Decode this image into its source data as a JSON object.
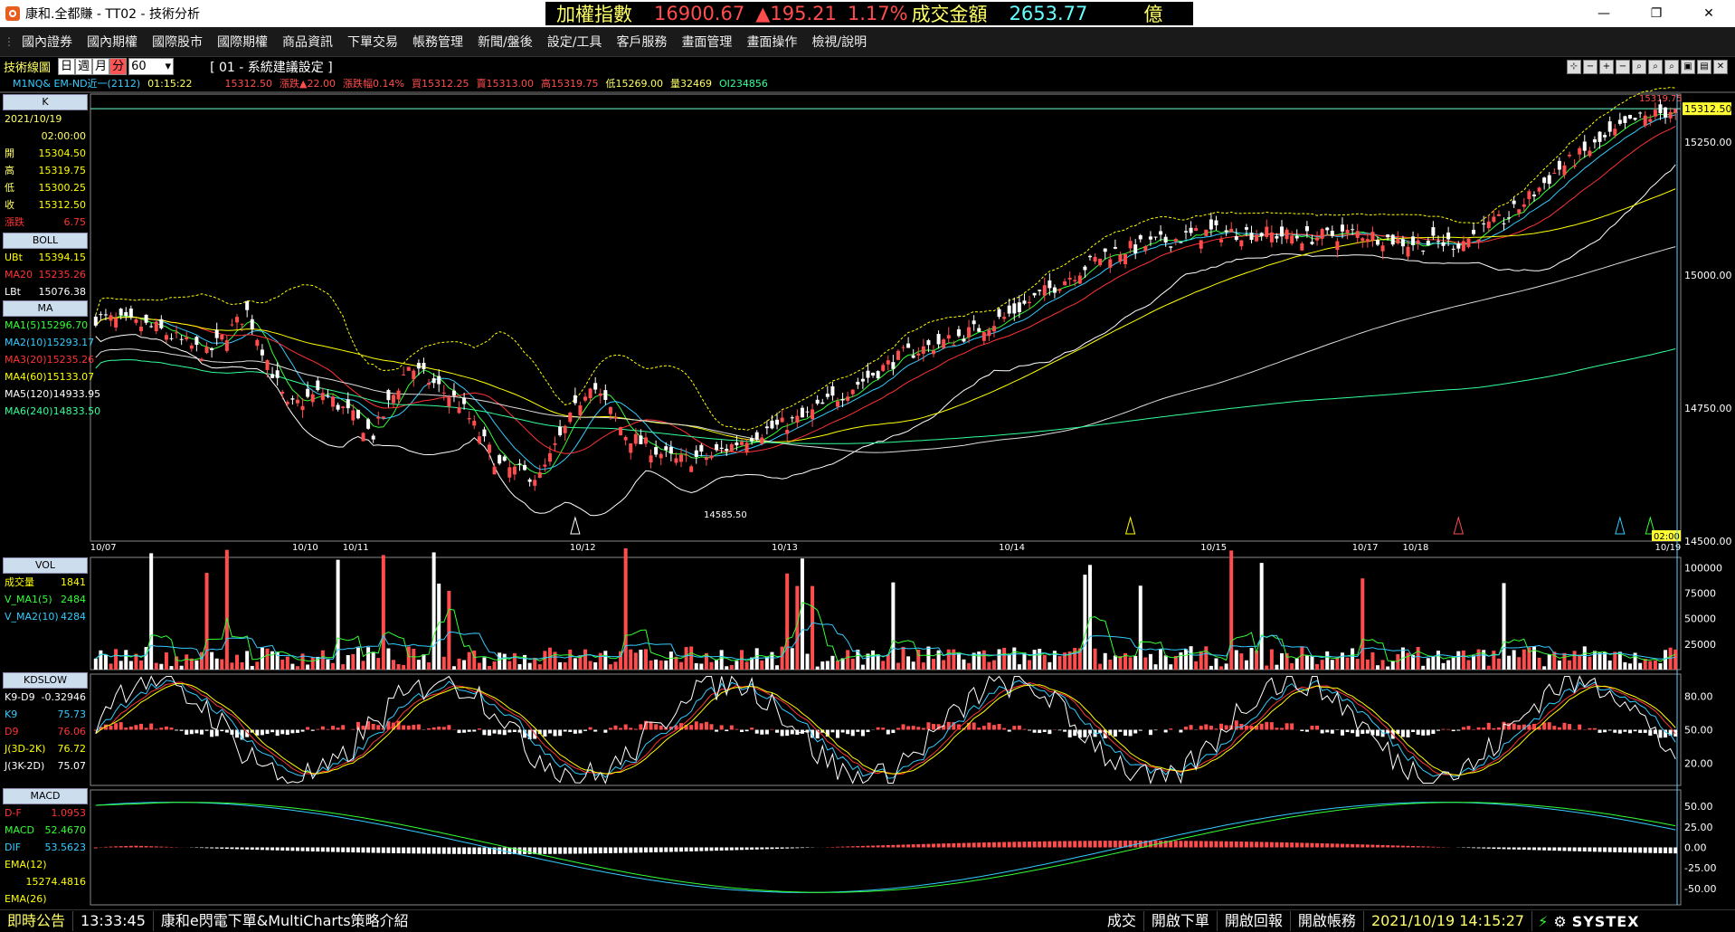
{
  "window": {
    "title": "康和.全都賺 - TT02 - 技術分析",
    "ticker_label": "加權指數",
    "ticker_value": "16900.67",
    "ticker_change": "▲195.21",
    "ticker_pct": "1.17%",
    "ticker_vol_label": "成交金額",
    "ticker_vol": "2653.77",
    "ticker_unit": "億",
    "minimize": "—",
    "maximize": "❐",
    "close": "✕"
  },
  "menu": [
    "國內證券",
    "國內期權",
    "國際股市",
    "國際期權",
    "商品資訊",
    "下單交易",
    "帳務管理",
    "新聞/盤後",
    "設定/工具",
    "客戶服務",
    "畫面管理",
    "畫面操作",
    "檢視/說明"
  ],
  "toolbar": {
    "chart_label": "技術線圖",
    "periods": [
      "日",
      "週",
      "月",
      "分"
    ],
    "active_period": "分",
    "interval": "60",
    "setting": "[ 01 - 系統建議設定 ]"
  },
  "infoline": {
    "symbol": "M1NQ&  EM-ND近一(2112)",
    "time": "01:15:22",
    "price": "15312.50",
    "change": "漲跌▲22.00",
    "pct": "漲跌幅0.14%",
    "bid": "買15312.25",
    "ask": "賣15313.00",
    "high": "高15319.75",
    "low": "低15269.00",
    "vol": "量32469",
    "oi": "OI234856"
  },
  "side_k": {
    "header": "K",
    "date": "2021/10/19",
    "time": "02:00:00",
    "rows": [
      {
        "label": "開",
        "value": "15304.50",
        "color": "#ffff00"
      },
      {
        "label": "高",
        "value": "15319.75",
        "color": "#ffff00"
      },
      {
        "label": "低",
        "value": "15300.25",
        "color": "#ffff00"
      },
      {
        "label": "收",
        "value": "15312.50",
        "color": "#ffff00"
      },
      {
        "label": "漲跌",
        "value": "6.75",
        "color": "#ff3333"
      }
    ]
  },
  "side_boll": {
    "header": "BOLL",
    "rows": [
      {
        "label": "UBt",
        "value": "15394.15",
        "color": "#ffff00"
      },
      {
        "label": "MA20",
        "value": "15235.26",
        "color": "#ff3333"
      },
      {
        "label": "LBt",
        "value": "15076.38",
        "color": "#ffffff"
      }
    ]
  },
  "side_ma": {
    "header": "MA",
    "rows": [
      {
        "label": "MA1(5)",
        "value": "15296.70",
        "color": "#33ff33"
      },
      {
        "label": "MA2(10)",
        "value": "15293.17",
        "color": "#33ccff"
      },
      {
        "label": "MA3(20)",
        "value": "15235.26",
        "color": "#ff3333"
      },
      {
        "label": "MA4(60)",
        "value": "15133.07",
        "color": "#ffff00"
      },
      {
        "label": "MA5(120)",
        "value": "14933.95",
        "color": "#ffffff"
      },
      {
        "label": "MA6(240)",
        "value": "14833.50",
        "color": "#33ff99"
      }
    ]
  },
  "side_vol": {
    "header": "VOL",
    "rows": [
      {
        "label": "成交量",
        "value": "1841",
        "color": "#ffff00"
      },
      {
        "label": "V_MA1(5)",
        "value": "2484",
        "color": "#33ff33"
      },
      {
        "label": "V_MA2(10)",
        "value": "4284",
        "color": "#33ccff"
      }
    ]
  },
  "side_kd": {
    "header": "KDSLOW",
    "rows": [
      {
        "label": "K9-D9",
        "value": "-0.32946",
        "color": "#ffffff"
      },
      {
        "label": "K9",
        "value": "75.73",
        "color": "#33ccff"
      },
      {
        "label": "D9",
        "value": "76.06",
        "color": "#ff3333"
      },
      {
        "label": "J(3D-2K)",
        "value": "76.72",
        "color": "#ffff00"
      },
      {
        "label": "J(3K-2D)",
        "value": "75.07",
        "color": "#ffffff"
      }
    ]
  },
  "side_macd": {
    "header": "MACD",
    "rows": [
      {
        "label": "D-F",
        "value": "1.0953",
        "color": "#ff3333"
      },
      {
        "label": "MACD",
        "value": "52.4670",
        "color": "#33ff33"
      },
      {
        "label": "DIF",
        "value": "53.5623",
        "color": "#33ccff"
      },
      {
        "label": "EMA(12)",
        "value": "",
        "color": "#ffff00"
      },
      {
        "label": "",
        "value": "15274.4816",
        "color": "#ffff00"
      },
      {
        "label": "EMA(26)",
        "value": "",
        "color": "#ffff00"
      }
    ]
  },
  "chart_data": {
    "type": "candlestick",
    "price_axis_ticks": [
      "15250.00",
      "15000.00",
      "14750.00",
      "14500.00"
    ],
    "price_ylim": [
      14500,
      15340
    ],
    "current_price_label": "15312.50",
    "high_marker": "15319.75",
    "low_marker": "14585.50",
    "date_labels": [
      "10/07",
      "10/10",
      "10/11",
      "10/12",
      "10/13",
      "10/14",
      "10/15",
      "10/17",
      "10/18",
      "10/19"
    ],
    "current_time_tag": "02:00",
    "vol_axis_ticks": [
      "100000",
      "75000",
      "50000",
      "25000"
    ],
    "kd_axis_ticks": [
      "80.00",
      "50.00",
      "20.00"
    ],
    "macd_axis_ticks": [
      "50.00",
      "25.00",
      "0.00",
      "-25.00",
      "-50.00"
    ]
  },
  "status": {
    "notice": "即時公告",
    "time": "13:33:45",
    "message": "康和e閃電下單&MultiCharts策略介紹",
    "btns": [
      "成交",
      "開啟下單",
      "開啟回報",
      "開啟帳務"
    ],
    "datetime": "2021/10/19 14:15:27",
    "brand": "SYSTEX"
  },
  "colors": {
    "up": "#ff4d4d",
    "down": "#ffffff",
    "bg": "#000000",
    "grid": "#333333"
  }
}
